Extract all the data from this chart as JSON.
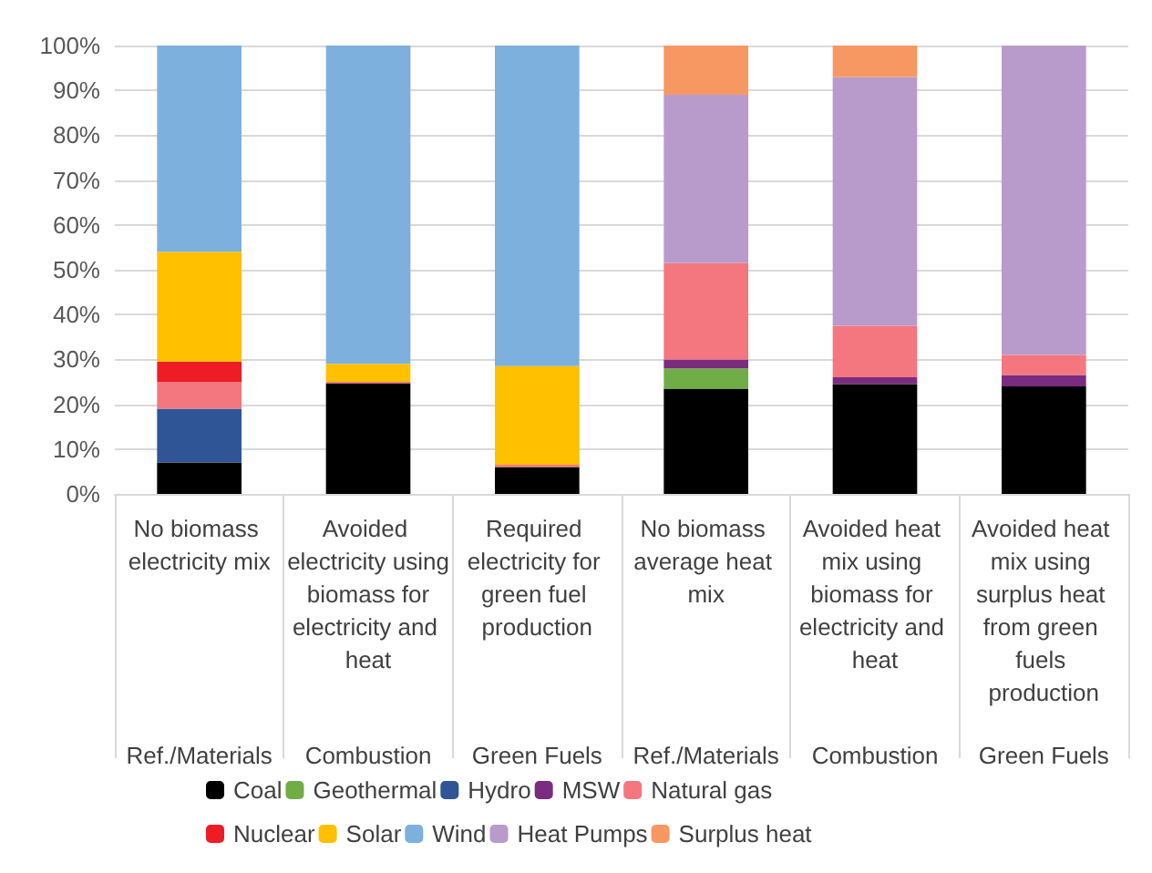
{
  "chart_data": {
    "type": "bar",
    "stacked": true,
    "categories": [
      "No biomass electricity mix",
      "Avoided electricity using biomass for electricity and heat",
      "Required electricity for green fuel production",
      "No biomass average heat mix",
      "Avoided heat mix using biomass for electricity and heat",
      "Avoided heat mix using surplus heat from green fuels production"
    ],
    "series": [
      {
        "name": "Coal",
        "color": "#000000",
        "values": [
          7,
          24.7,
          6,
          23.5,
          24.5,
          24
        ]
      },
      {
        "name": "Geothermal",
        "color": "#70ad47",
        "values": [
          null,
          null,
          null,
          4.5,
          null,
          null
        ]
      },
      {
        "name": "Hydro",
        "color": "#2f5597",
        "values": [
          12,
          null,
          null,
          null,
          null,
          null
        ]
      },
      {
        "name": "MSW",
        "color": "#7b2c7e",
        "values": [
          null,
          null,
          null,
          2,
          1.5,
          2.5
        ]
      },
      {
        "name": "Natural gas",
        "color": "#f4777f",
        "values": [
          6,
          0.3,
          0.5,
          21.5,
          11.5,
          4.5
        ]
      },
      {
        "name": "Nuclear",
        "color": "#ee1c25",
        "values": [
          4.5,
          null,
          null,
          null,
          null,
          null
        ]
      },
      {
        "name": "Solar",
        "color": "#ffc000",
        "values": [
          24.5,
          4,
          22,
          null,
          null,
          null
        ]
      },
      {
        "name": "Wind",
        "color": "#7eb0de",
        "values": [
          46,
          71,
          71.5,
          null,
          null,
          null
        ]
      },
      {
        "name": "Heat Pumps",
        "color": "#b89bca",
        "values": [
          null,
          null,
          null,
          37.5,
          55.5,
          69
        ]
      },
      {
        "name": "Surplus heat",
        "color": "#f79862",
        "values": [
          null,
          null,
          null,
          11,
          7,
          null
        ]
      }
    ],
    "annotations": [
      "Ref./Materials",
      "Combustion",
      "Green Fuels",
      "Ref./Materials",
      "Combustion",
      "Green Fuels"
    ],
    "ylim": [
      0,
      100
    ],
    "yticks": [
      {
        "value": 0,
        "label": "0%"
      },
      {
        "value": 10,
        "label": "10%"
      },
      {
        "value": 20,
        "label": "20%"
      },
      {
        "value": 30,
        "label": "30%"
      },
      {
        "value": 40,
        "label": "40%"
      },
      {
        "value": 50,
        "label": "50%"
      },
      {
        "value": 60,
        "label": "60%"
      },
      {
        "value": 70,
        "label": "70%"
      },
      {
        "value": 80,
        "label": "80%"
      },
      {
        "value": 90,
        "label": "90%"
      },
      {
        "value": 100,
        "label": "100%"
      }
    ],
    "grid": "y",
    "legend": "bottom"
  }
}
